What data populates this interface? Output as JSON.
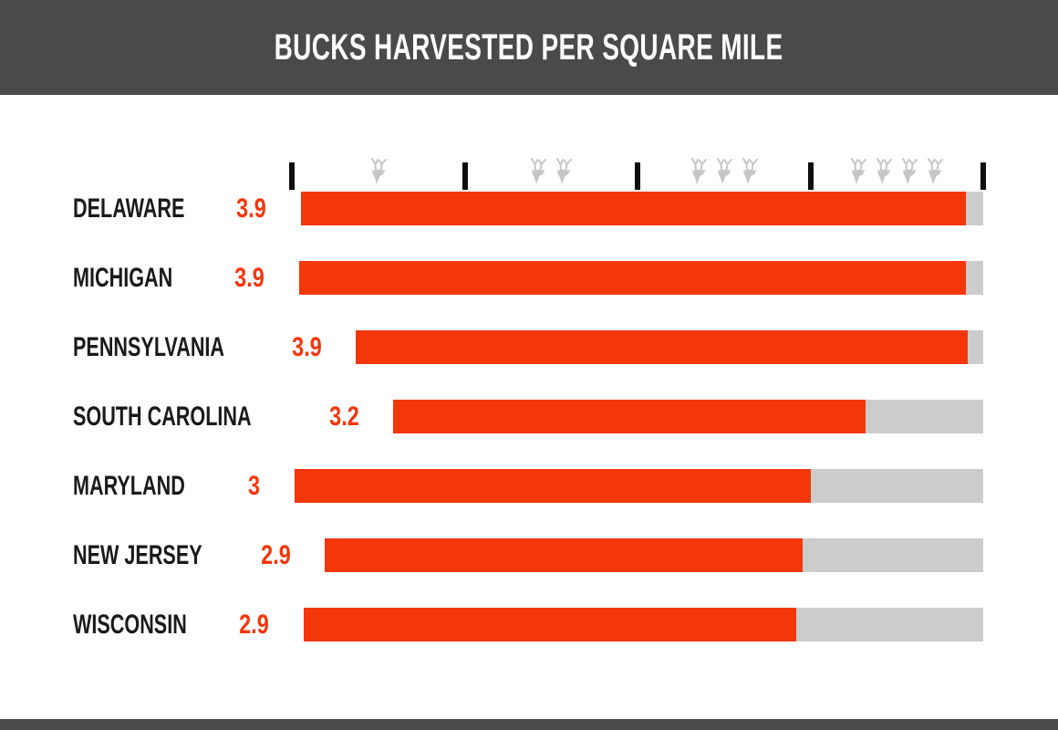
{
  "header": {
    "title": "BUCKS HARVESTED PER SQUARE MILE"
  },
  "chart_data": {
    "type": "bar",
    "orientation": "horizontal",
    "title": "BUCKS HARVESTED PER SQUARE MILE",
    "categories": [
      "DELAWARE",
      "MICHIGAN",
      "PENNSYLVANIA",
      "SOUTH CAROLINA",
      "MARYLAND",
      "NEW JERSEY",
      "WISCONSIN"
    ],
    "values": [
      3.9,
      3.9,
      3.9,
      3.2,
      3,
      2.9,
      2.9
    ],
    "value_labels": [
      "3.9",
      "3.9",
      "3.9",
      "3.2",
      "3",
      "2.9",
      "2.9"
    ],
    "xlabel": "",
    "ylabel": "",
    "xlim": [
      0,
      4
    ],
    "axis_ticks": [
      0,
      1,
      2,
      3,
      4
    ],
    "axis_icon": "buck-icon",
    "axis_icon_counts": [
      1,
      2,
      3,
      4
    ],
    "legend": "none",
    "grid": false,
    "colors": {
      "bar_fill": "#f4360b",
      "bar_track": "#cccccc",
      "value_text": "#f4360b",
      "label_text": "#1a1a1a",
      "header_bg": "#4a4a4a",
      "header_text": "#ffffff",
      "tick": "#0e0e0e",
      "icon": "#c6c6c6"
    }
  }
}
